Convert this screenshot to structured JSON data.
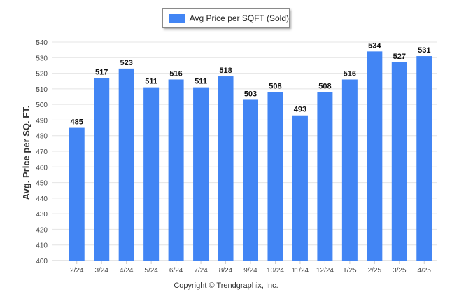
{
  "chart_data": {
    "type": "bar",
    "ylabel": "Avg. Price per SQ. FT.",
    "xlabel": "",
    "categories": [
      "2/24",
      "3/24",
      "4/24",
      "5/24",
      "6/24",
      "7/24",
      "8/24",
      "9/24",
      "10/24",
      "11/24",
      "12/24",
      "1/25",
      "2/25",
      "3/25",
      "4/25"
    ],
    "series": [
      {
        "name": "Avg Price per SQFT (Sold)",
        "values": [
          485,
          517,
          523,
          511,
          516,
          511,
          518,
          503,
          508,
          493,
          508,
          516,
          534,
          527,
          531
        ]
      }
    ],
    "ylim": [
      400,
      540
    ],
    "yticks": [
      400,
      410,
      420,
      430,
      440,
      450,
      460,
      470,
      480,
      490,
      500,
      510,
      520,
      530,
      540
    ],
    "grid": true,
    "legend_position": "top-center",
    "data_labels": true,
    "bar_color": "#4285f4"
  },
  "footer": {
    "copyright": "Copyright © Trendgraphix, Inc."
  }
}
